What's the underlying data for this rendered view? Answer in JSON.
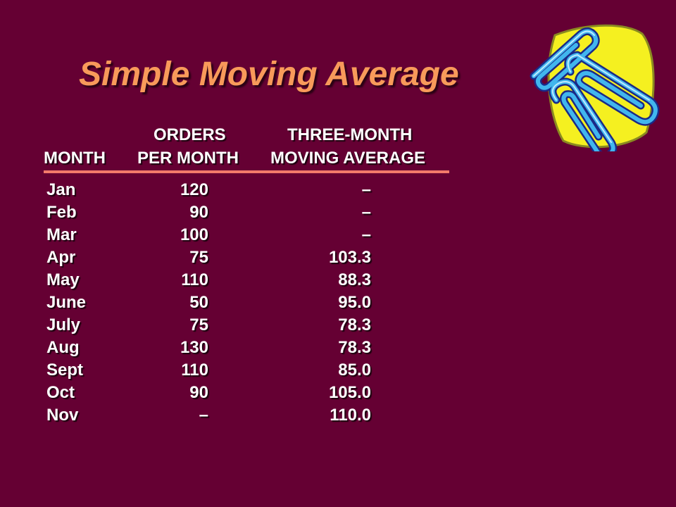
{
  "title": "Simple Moving Average",
  "headers": {
    "month": "MONTH",
    "orders_line1": "ORDERS",
    "orders_line2": "PER MONTH",
    "avg_line1": "THREE-MONTH",
    "avg_line2": "MOVING AVERAGE"
  },
  "rows": [
    {
      "month": "Jan",
      "orders": "120",
      "avg": "–"
    },
    {
      "month": "Feb",
      "orders": "90",
      "avg": "–"
    },
    {
      "month": "Mar",
      "orders": "100",
      "avg": "–"
    },
    {
      "month": "Apr",
      "orders": "75",
      "avg": "103.3"
    },
    {
      "month": "May",
      "orders": "110",
      "avg": "88.3"
    },
    {
      "month": "June",
      "orders": "50",
      "avg": "95.0"
    },
    {
      "month": "July",
      "orders": "75",
      "avg": "78.3"
    },
    {
      "month": "Aug",
      "orders": "130",
      "avg": "78.3"
    },
    {
      "month": "Sept",
      "orders": "110",
      "avg": "85.0"
    },
    {
      "month": "Oct",
      "orders": "90",
      "avg": "105.0"
    },
    {
      "month": "Nov",
      "orders": "–",
      "avg": "110.0"
    }
  ],
  "colors": {
    "background": "#650033",
    "title": "#f89a5a",
    "rule": "#f37a6a",
    "text": "#ffffff"
  },
  "icons": {
    "decoration": "paperclips-icon"
  }
}
